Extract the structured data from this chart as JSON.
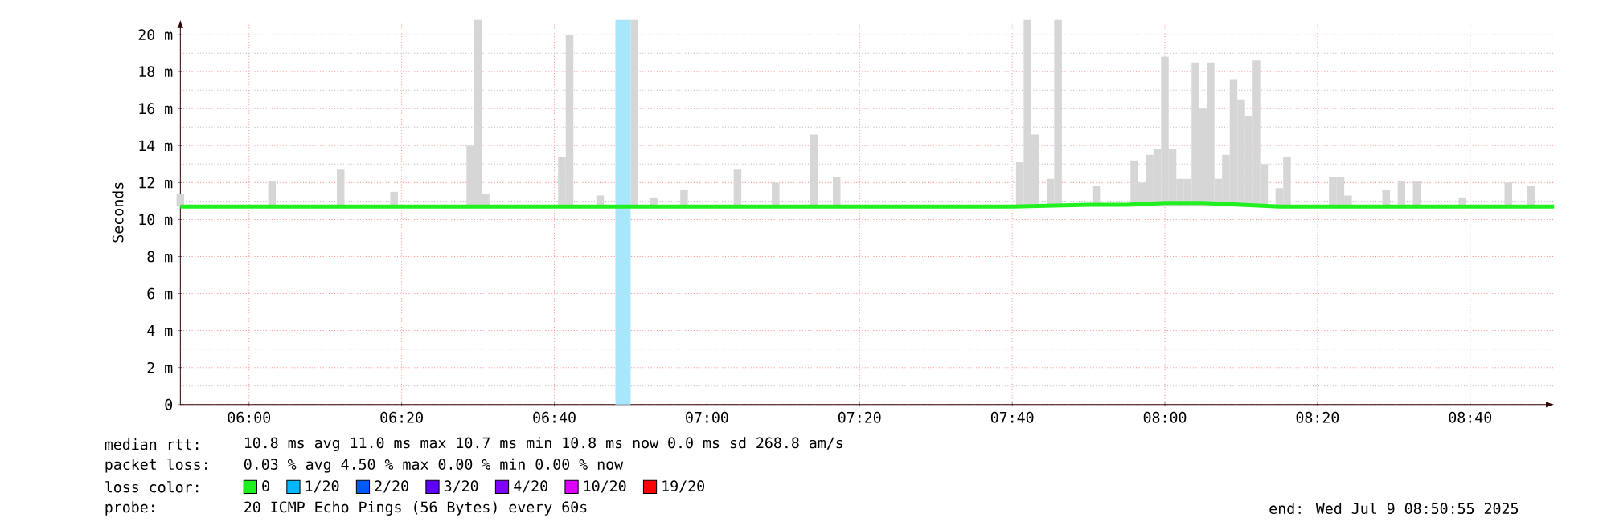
{
  "chart_data": {
    "type": "line",
    "ylabel": "Seconds",
    "xlim": [
      5.85,
      8.85
    ],
    "xticks": [
      {
        "value": 6,
        "label": "06:00"
      },
      {
        "value": 6.3333,
        "label": "06:20"
      },
      {
        "value": 6.6667,
        "label": "06:40"
      },
      {
        "value": 7,
        "label": "07:00"
      },
      {
        "value": 7.3333,
        "label": "07:20"
      },
      {
        "value": 7.6667,
        "label": "07:40"
      },
      {
        "value": 8,
        "label": "08:00"
      },
      {
        "value": 8.3333,
        "label": "08:20"
      },
      {
        "value": 8.6667,
        "label": "08:40"
      }
    ],
    "ylim": [
      0,
      20.8
    ],
    "yticks": [
      0,
      {
        "value": 2,
        "label": "2 m"
      },
      {
        "value": 4,
        "label": "4 m"
      },
      {
        "value": 6,
        "label": "6 m"
      },
      {
        "value": 8,
        "label": "8 m"
      },
      {
        "value": 10,
        "label": "10 m"
      },
      {
        "value": 12,
        "label": "12 m"
      },
      {
        "value": 14,
        "label": "14 m"
      },
      {
        "value": 16,
        "label": "16 m"
      },
      {
        "value": 18,
        "label": "18 m"
      },
      {
        "value": 20,
        "label": "20 m"
      }
    ],
    "grid": true,
    "legend": "bottom",
    "legend_title": "loss color:",
    "bands": [
      {
        "axis": "x",
        "from": 6.8,
        "to": 6.8333,
        "color": "#a8e6fc"
      }
    ],
    "series": [
      {
        "type": "bar",
        "color": "#d6d6d6",
        "x": [
          5.85,
          6.05,
          6.2,
          6.3167,
          6.4833,
          6.5,
          6.5167,
          6.6833,
          6.7,
          6.7667,
          6.8417,
          6.8833,
          6.95,
          7.0667,
          7.15,
          7.2333,
          7.2833,
          7.6833,
          7.7,
          7.7167,
          7.75,
          7.7667,
          7.85,
          7.9333,
          7.95,
          7.9667,
          7.9833,
          8.0,
          8.0167,
          8.0333,
          8.05,
          8.0667,
          8.0833,
          8.1,
          8.1167,
          8.1333,
          8.15,
          8.1667,
          8.1833,
          8.2,
          8.2167,
          8.25,
          8.2667,
          8.3667,
          8.3833,
          8.4,
          8.4833,
          8.5167,
          8.55,
          8.65,
          8.75,
          8.8
        ],
        "base": [
          10.7,
          10.7,
          10.7,
          10.7,
          10.7,
          10.7,
          10.7,
          10.7,
          10.7,
          10.7,
          10.7,
          10.7,
          10.7,
          10.7,
          10.7,
          10.7,
          10.7,
          10.7,
          10.7,
          10.7,
          10.7,
          10.7,
          10.7,
          10.7,
          10.7,
          10.7,
          10.7,
          10.7,
          10.7,
          10.7,
          10.7,
          10.7,
          10.7,
          10.7,
          10.7,
          10.7,
          10.7,
          10.7,
          10.7,
          10.7,
          10.7,
          10.7,
          10.7,
          10.7,
          10.7,
          10.7,
          10.7,
          10.7,
          10.7,
          10.7,
          10.7,
          10.7
        ],
        "values": [
          0.7,
          1.4,
          2.0,
          0.8,
          3.3,
          10.1,
          0.7,
          2.7,
          9.3,
          0.6,
          10.1,
          0.5,
          0.9,
          2.0,
          1.3,
          3.9,
          1.6,
          2.4,
          10.1,
          3.9,
          1.5,
          10.1,
          1.1,
          2.5,
          1.3,
          2.8,
          3.1,
          8.1,
          3.1,
          1.5,
          1.5,
          7.8,
          5.3,
          7.8,
          1.5,
          2.8,
          6.9,
          5.8,
          4.9,
          7.9,
          2.3,
          1.0,
          2.7,
          1.6,
          1.6,
          0.6,
          0.9,
          1.4,
          1.4,
          0.5,
          1.3,
          1.1
        ]
      },
      {
        "name": "0",
        "color": "#20f020",
        "x": [
          5.85,
          6.0,
          6.1667,
          6.3333,
          6.5,
          6.6667,
          6.8333,
          7.0,
          7.1667,
          7.3333,
          7.5,
          7.6667,
          7.8333,
          7.9167,
          8.0,
          8.0833,
          8.1667,
          8.25,
          8.3333,
          8.5,
          8.6667,
          8.85
        ],
        "values": [
          10.7,
          10.7,
          10.7,
          10.7,
          10.7,
          10.7,
          10.7,
          10.7,
          10.7,
          10.7,
          10.7,
          10.7,
          10.8,
          10.8,
          10.9,
          10.9,
          10.8,
          10.7,
          10.7,
          10.7,
          10.7,
          10.7
        ]
      },
      {
        "name": "1/20",
        "color": "#00b8ff"
      },
      {
        "name": "2/20",
        "color": "#0059ff"
      },
      {
        "name": "3/20",
        "color": "#5e00ff"
      },
      {
        "name": "4/20",
        "color": "#7e00ff"
      },
      {
        "name": "10/20",
        "color": "#dd00ff"
      },
      {
        "name": "19/20",
        "color": "#ff0000"
      }
    ],
    "annotations": [
      "median rtt:",
      "10.8 ms avg  11.0 ms max  10.7 ms min  10.8 ms now  0.0 ms sd  268.8  am/s",
      "packet loss:",
      "0.03 % avg  4.50 % max  0.00 % min  0.00 % now",
      "probe:",
      "20 ICMP Echo Pings (56 Bytes) every 60s",
      "end: Wed Jul  9 08:50:55 2025"
    ]
  }
}
